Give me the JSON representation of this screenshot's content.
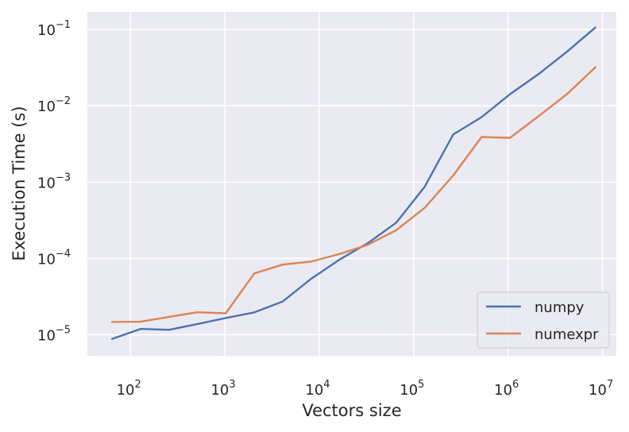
{
  "chart_data": {
    "type": "line",
    "xlabel": "Vectors size",
    "ylabel": "Execution Time (s)",
    "xscale": "log",
    "yscale": "log",
    "xlim": [
      35,
      14000000
    ],
    "ylim": [
      5.3e-06,
      0.17
    ],
    "grid": true,
    "legend_position": "lower-right",
    "x_ticks": [
      {
        "value": 100,
        "base": "10",
        "exp": "2"
      },
      {
        "value": 1000,
        "base": "10",
        "exp": "3"
      },
      {
        "value": 10000,
        "base": "10",
        "exp": "4"
      },
      {
        "value": 100000,
        "base": "10",
        "exp": "5"
      },
      {
        "value": 1000000,
        "base": "10",
        "exp": "6"
      },
      {
        "value": 10000000,
        "base": "10",
        "exp": "7"
      }
    ],
    "y_ticks": [
      {
        "value": 1e-05,
        "base": "10",
        "exp": "−5"
      },
      {
        "value": 0.0001,
        "base": "10",
        "exp": "−4"
      },
      {
        "value": 0.001,
        "base": "10",
        "exp": "−3"
      },
      {
        "value": 0.01,
        "base": "10",
        "exp": "−2"
      },
      {
        "value": 0.1,
        "base": "10",
        "exp": "−1"
      }
    ],
    "x": [
      64,
      128,
      256,
      512,
      1024,
      2048,
      4096,
      8192,
      16384,
      32768,
      65536,
      131072,
      262144,
      524288,
      1048576,
      2097152,
      4194304,
      8388608
    ],
    "series": [
      {
        "name": "numpy",
        "color": "#4c72b0",
        "values": [
          8.8e-06,
          1.19e-05,
          1.16e-05,
          1.38e-05,
          1.66e-05,
          1.96e-05,
          2.72e-05,
          5.4e-05,
          9.65e-05,
          0.000159,
          0.000295,
          0.00087,
          0.0042,
          0.0071,
          0.0142,
          0.026,
          0.051,
          0.106
        ]
      },
      {
        "name": "numexpr",
        "color": "#dd8452",
        "values": [
          1.47e-05,
          1.48e-05,
          1.71e-05,
          1.97e-05,
          1.91e-05,
          6.35e-05,
          8.3e-05,
          9.1e-05,
          0.000114,
          0.000151,
          0.000235,
          0.00046,
          0.00122,
          0.0039,
          0.0038,
          0.0073,
          0.0142,
          0.032
        ]
      }
    ]
  },
  "colors": {
    "plot_background": "#eaeaf2",
    "grid": "#ffffff",
    "text": "#262626"
  }
}
